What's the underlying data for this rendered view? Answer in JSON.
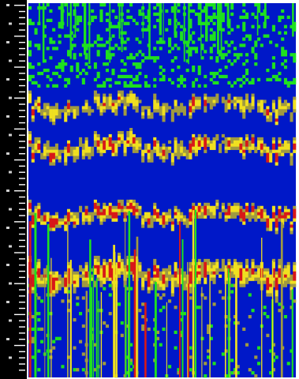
{
  "chart_data": {
    "type": "heatmap",
    "title": "",
    "xlabel": "",
    "ylabel": "",
    "grid": false,
    "legend": "none",
    "palette": [
      "#0018c8",
      "#1ee020",
      "#a09a40",
      "#f0e020",
      "#d81818"
    ],
    "palette_levels": [
      "low",
      "low-mid",
      "mid",
      "high",
      "peak"
    ],
    "time_bins": 90,
    "freq_bins": 120,
    "bands": [
      {
        "freq_center": 0.56,
        "strength": 0.95,
        "width": 0.025
      },
      {
        "freq_center": 0.38,
        "strength": 0.85,
        "width": 0.03
      },
      {
        "freq_center": 0.27,
        "strength": 0.75,
        "width": 0.03
      },
      {
        "freq_center": 0.72,
        "strength": 0.9,
        "width": 0.04
      }
    ],
    "y_tick_count": 60
  }
}
